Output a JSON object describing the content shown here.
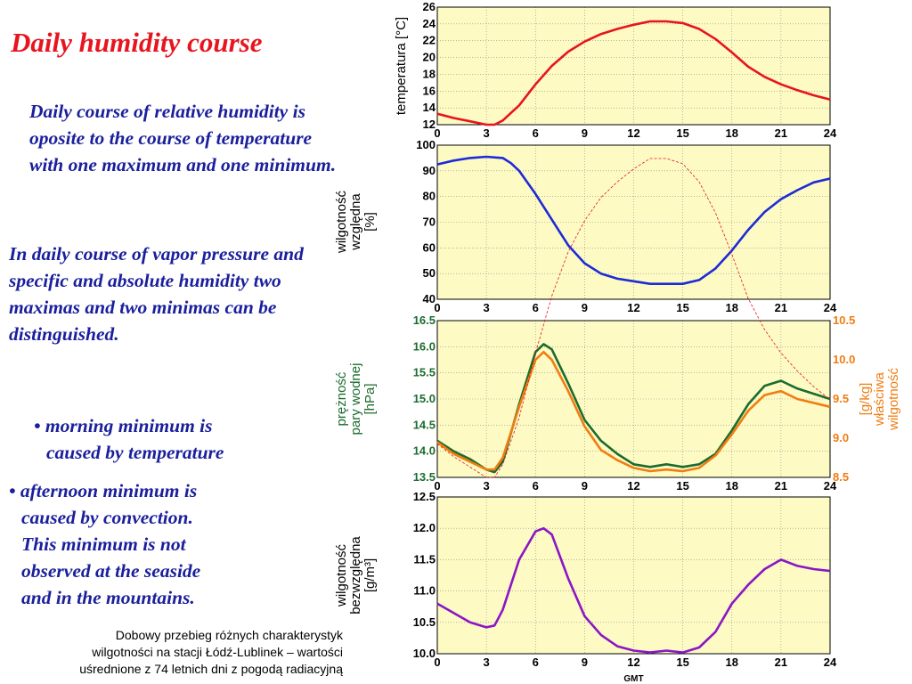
{
  "slide": {
    "title": "Daily humidity course",
    "paragraph1": "Daily course of relative humidity is oposite to the course of temperature with one maximum and one minimum.",
    "paragraph2": "In daily course of vapor pressure and specific and absolute humidity two maximas and two minimas can be distinguished.",
    "bullet1": [
      "• morning minimum is",
      "caused by temperature"
    ],
    "bullet2": [
      "• afternoon minimum is",
      "caused by convection.",
      "This minimum is not",
      "observed at the seaside",
      "and in the mountains."
    ],
    "caption": [
      "Dobowy przebieg różnych charakterystyk",
      "wilgotności na stacji Łódź-Lublinek – wartości",
      "uśrednione z 74 letnich dni z pogodą radiacyjną"
    ]
  },
  "colors": {
    "title": "#e8141e",
    "text": "#1a1f9c",
    "plot_bg": "#fdfac4",
    "temperature": "#e8141e",
    "relative_humidity": "#1c2bd6",
    "vapor_pressure": "#1c6b2e",
    "specific_humidity": "#f07d12",
    "absolute_humidity": "#8a16c6"
  },
  "chart_data": [
    {
      "type": "line",
      "ylabel": "temperatura [°C]",
      "xlim": [
        0,
        24
      ],
      "ylim": [
        12,
        26
      ],
      "grid": true,
      "x_ticks": [
        "0",
        "3",
        "6",
        "9",
        "12",
        "15",
        "18",
        "21",
        "24"
      ],
      "y_ticks": [
        "12",
        "14",
        "16",
        "18",
        "20",
        "22",
        "24",
        "26"
      ],
      "series": [
        {
          "color": "#e8141e",
          "x": [
            0,
            1,
            2,
            3,
            3.5,
            4,
            5,
            6,
            7,
            8,
            9,
            10,
            11,
            12,
            13,
            14,
            15,
            16,
            17,
            18,
            19,
            20,
            21,
            22,
            23,
            24
          ],
          "y": [
            13.3,
            12.8,
            12.4,
            12.0,
            12.0,
            12.5,
            14.3,
            16.8,
            19.0,
            20.7,
            21.9,
            22.8,
            23.4,
            23.9,
            24.3,
            24.3,
            24.1,
            23.4,
            22.2,
            20.6,
            18.9,
            17.7,
            16.8,
            16.1,
            15.5,
            15.0
          ]
        }
      ]
    },
    {
      "type": "line",
      "ylabel": "wilgotność względna [%]",
      "xlim": [
        0,
        24
      ],
      "ylim": [
        40,
        100
      ],
      "grid": true,
      "x_ticks": [
        "0",
        "3",
        "6",
        "9",
        "12",
        "15",
        "18",
        "21",
        "24"
      ],
      "y_ticks": [
        "40",
        "50",
        "60",
        "70",
        "80",
        "90",
        "100"
      ],
      "series": [
        {
          "color": "#1c2bd6",
          "x": [
            0,
            1,
            2,
            3,
            4,
            4.5,
            5,
            6,
            7,
            8,
            9,
            10,
            11,
            12,
            13,
            14,
            15,
            16,
            17,
            18,
            19,
            20,
            21,
            22,
            23,
            24
          ],
          "y": [
            92.5,
            94,
            95,
            95.5,
            95,
            93,
            90,
            81,
            71,
            61,
            54,
            50,
            48,
            47,
            46,
            46,
            46,
            47.5,
            52,
            59,
            67,
            74,
            79,
            82.5,
            85.5,
            87
          ]
        }
      ]
    },
    {
      "type": "line",
      "ylabel": "prężność pary wodnej [hPa]",
      "y2label": "wilgotność właściwa [g/kg]",
      "xlim": [
        0,
        24
      ],
      "ylim": [
        13.5,
        16.5
      ],
      "y2lim": [
        8.5,
        10.5
      ],
      "grid": true,
      "x_ticks": [
        "0",
        "3",
        "6",
        "9",
        "12",
        "15",
        "18",
        "21",
        "24"
      ],
      "y_ticks": [
        "13.5",
        "14.0",
        "14.5",
        "15.0",
        "15.5",
        "16.0",
        "16.5"
      ],
      "y2_ticks": [
        "8.5",
        "9.0",
        "9.5",
        "10.0",
        "10.5"
      ],
      "series": [
        {
          "color": "#1c6b2e",
          "axis": "left",
          "x": [
            0,
            1,
            2,
            3,
            3.5,
            4,
            5,
            6,
            6.5,
            7,
            8,
            9,
            10,
            11,
            12,
            13,
            14,
            15,
            16,
            17,
            18,
            19,
            20,
            21,
            22,
            23,
            24
          ],
          "y": [
            14.2,
            14.0,
            13.85,
            13.65,
            13.6,
            13.8,
            14.9,
            15.9,
            16.05,
            15.95,
            15.3,
            14.6,
            14.2,
            13.95,
            13.75,
            13.7,
            13.75,
            13.7,
            13.75,
            13.95,
            14.4,
            14.9,
            15.25,
            15.35,
            15.2,
            15.1,
            15.0
          ]
        },
        {
          "color": "#f07d12",
          "axis": "right",
          "x": [
            0,
            1,
            2,
            3,
            3.5,
            4,
            5,
            6,
            6.5,
            7,
            8,
            9,
            10,
            11,
            12,
            13,
            14,
            15,
            16,
            17,
            18,
            19,
            20,
            21,
            22,
            23,
            24
          ],
          "y": [
            8.95,
            8.8,
            8.7,
            8.6,
            8.6,
            8.75,
            9.4,
            10.0,
            10.1,
            10.0,
            9.6,
            9.15,
            8.85,
            8.72,
            8.62,
            8.58,
            8.6,
            8.58,
            8.62,
            8.78,
            9.05,
            9.35,
            9.55,
            9.6,
            9.5,
            9.45,
            9.4
          ]
        }
      ]
    },
    {
      "type": "line",
      "ylabel": "wilgotność bezwzględna [g/m³]",
      "xlabel": "GMT",
      "xlim": [
        0,
        24
      ],
      "ylim": [
        10.0,
        12.5
      ],
      "grid": true,
      "x_ticks": [
        "0",
        "3",
        "6",
        "9",
        "12",
        "15",
        "18",
        "21",
        "24"
      ],
      "y_ticks": [
        "10.0",
        "10.5",
        "11.0",
        "11.5",
        "12.0",
        "12.5"
      ],
      "series": [
        {
          "color": "#8a16c6",
          "x": [
            0,
            1,
            2,
            3,
            3.5,
            4,
            5,
            6,
            6.5,
            7,
            8,
            9,
            10,
            11,
            12,
            13,
            14,
            15,
            16,
            17,
            18,
            19,
            20,
            21,
            22,
            23,
            24
          ],
          "y": [
            10.8,
            10.65,
            10.5,
            10.42,
            10.45,
            10.7,
            11.5,
            11.95,
            12.0,
            11.9,
            11.2,
            10.6,
            10.3,
            10.12,
            10.05,
            10.02,
            10.05,
            10.02,
            10.1,
            10.35,
            10.8,
            11.1,
            11.35,
            11.5,
            11.4,
            11.35,
            11.32
          ]
        }
      ]
    }
  ]
}
